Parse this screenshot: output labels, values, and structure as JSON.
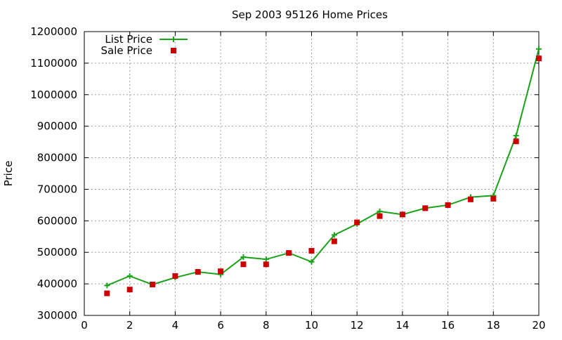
{
  "chart_data": {
    "type": "line",
    "title": "Sep 2003 95126 Home Prices",
    "xlabel": "",
    "ylabel": "Price",
    "xlim": [
      0,
      20
    ],
    "ylim": [
      300000,
      1200000
    ],
    "xticks": [
      "0",
      "2",
      "4",
      "6",
      "8",
      "10",
      "12",
      "14",
      "16",
      "18",
      "20"
    ],
    "yticks": [
      "300000",
      "400000",
      "500000",
      "600000",
      "700000",
      "800000",
      "900000",
      "1000000",
      "1100000",
      "1200000"
    ],
    "grid": true,
    "legend_position": "top-left",
    "x": [
      1,
      2,
      3,
      4,
      5,
      6,
      7,
      8,
      9,
      10,
      11,
      12,
      13,
      14,
      15,
      16,
      17,
      18,
      19,
      20
    ],
    "series": [
      {
        "name": "List Price",
        "style": "line-plus",
        "color": "#1aa21a",
        "values": [
          395000,
          425000,
          398000,
          420000,
          438000,
          430000,
          485000,
          478000,
          498000,
          470000,
          555000,
          590000,
          630000,
          620000,
          640000,
          650000,
          675000,
          680000,
          870000,
          1145000
        ]
      },
      {
        "name": "Sale Price",
        "style": "square-points",
        "color": "#cc0000",
        "values": [
          370000,
          382000,
          398000,
          425000,
          438000,
          440000,
          462000,
          462000,
          498000,
          505000,
          535000,
          595000,
          615000,
          620000,
          640000,
          650000,
          668000,
          670000,
          852000,
          1115000
        ]
      }
    ]
  }
}
